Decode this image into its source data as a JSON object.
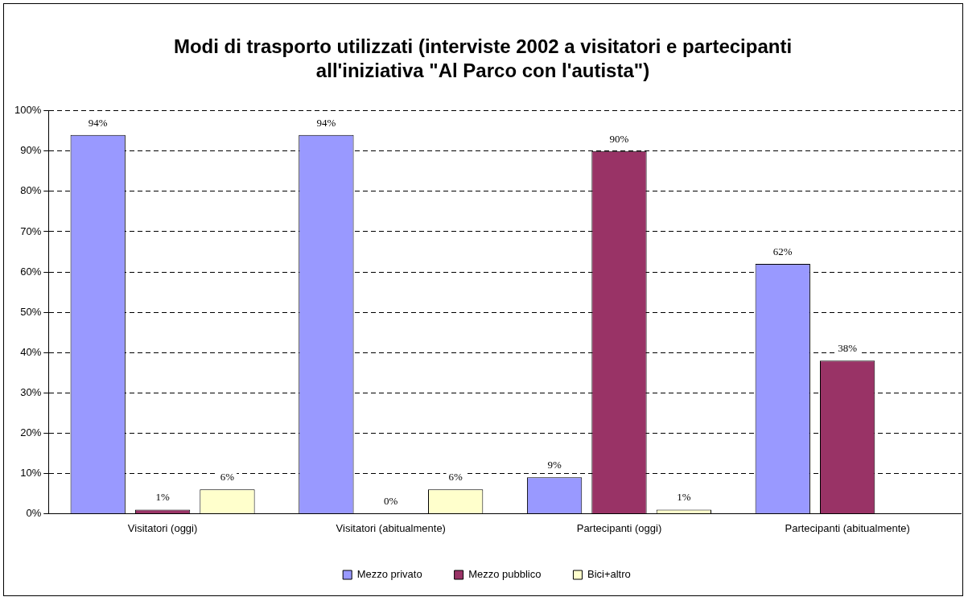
{
  "chart_data": {
    "type": "bar",
    "title": "Modi di trasporto utilizzati (interviste 2002 a visitatori e partecipanti all'iniziativa \"Al Parco con l'autista\")",
    "categories": [
      "Visitatori (oggi)",
      "Visitatori (abitualmente)",
      "Partecipanti (oggi)",
      "Partecipanti (abitualmente)"
    ],
    "series": [
      {
        "name": "Mezzo privato",
        "color": "#9999ff",
        "values": [
          94,
          94,
          9,
          62
        ],
        "value_labels": [
          "94%",
          "94%",
          "9%",
          "62%"
        ]
      },
      {
        "name": "Mezzo pubblico",
        "color": "#993366",
        "values": [
          1,
          0,
          90,
          38
        ],
        "value_labels": [
          "1%",
          "0%",
          "90%",
          "38%"
        ]
      },
      {
        "name": "Bici+altro",
        "color": "#ffffcc",
        "values": [
          6,
          6,
          1,
          null
        ],
        "value_labels": [
          "6%",
          "6%",
          "1%",
          null
        ]
      }
    ],
    "ylim": [
      0,
      100
    ],
    "yticks": [
      {
        "value": 0,
        "label": "0%"
      },
      {
        "value": 10,
        "label": "10%"
      },
      {
        "value": 20,
        "label": "20%"
      },
      {
        "value": 30,
        "label": "30%"
      },
      {
        "value": 40,
        "label": "40%"
      },
      {
        "value": 50,
        "label": "50%"
      },
      {
        "value": 60,
        "label": "60%"
      },
      {
        "value": 70,
        "label": "70%"
      },
      {
        "value": 80,
        "label": "80%"
      },
      {
        "value": 90,
        "label": "90%"
      },
      {
        "value": 100,
        "label": "100%"
      }
    ],
    "grid": "y",
    "legend": "bottom"
  }
}
